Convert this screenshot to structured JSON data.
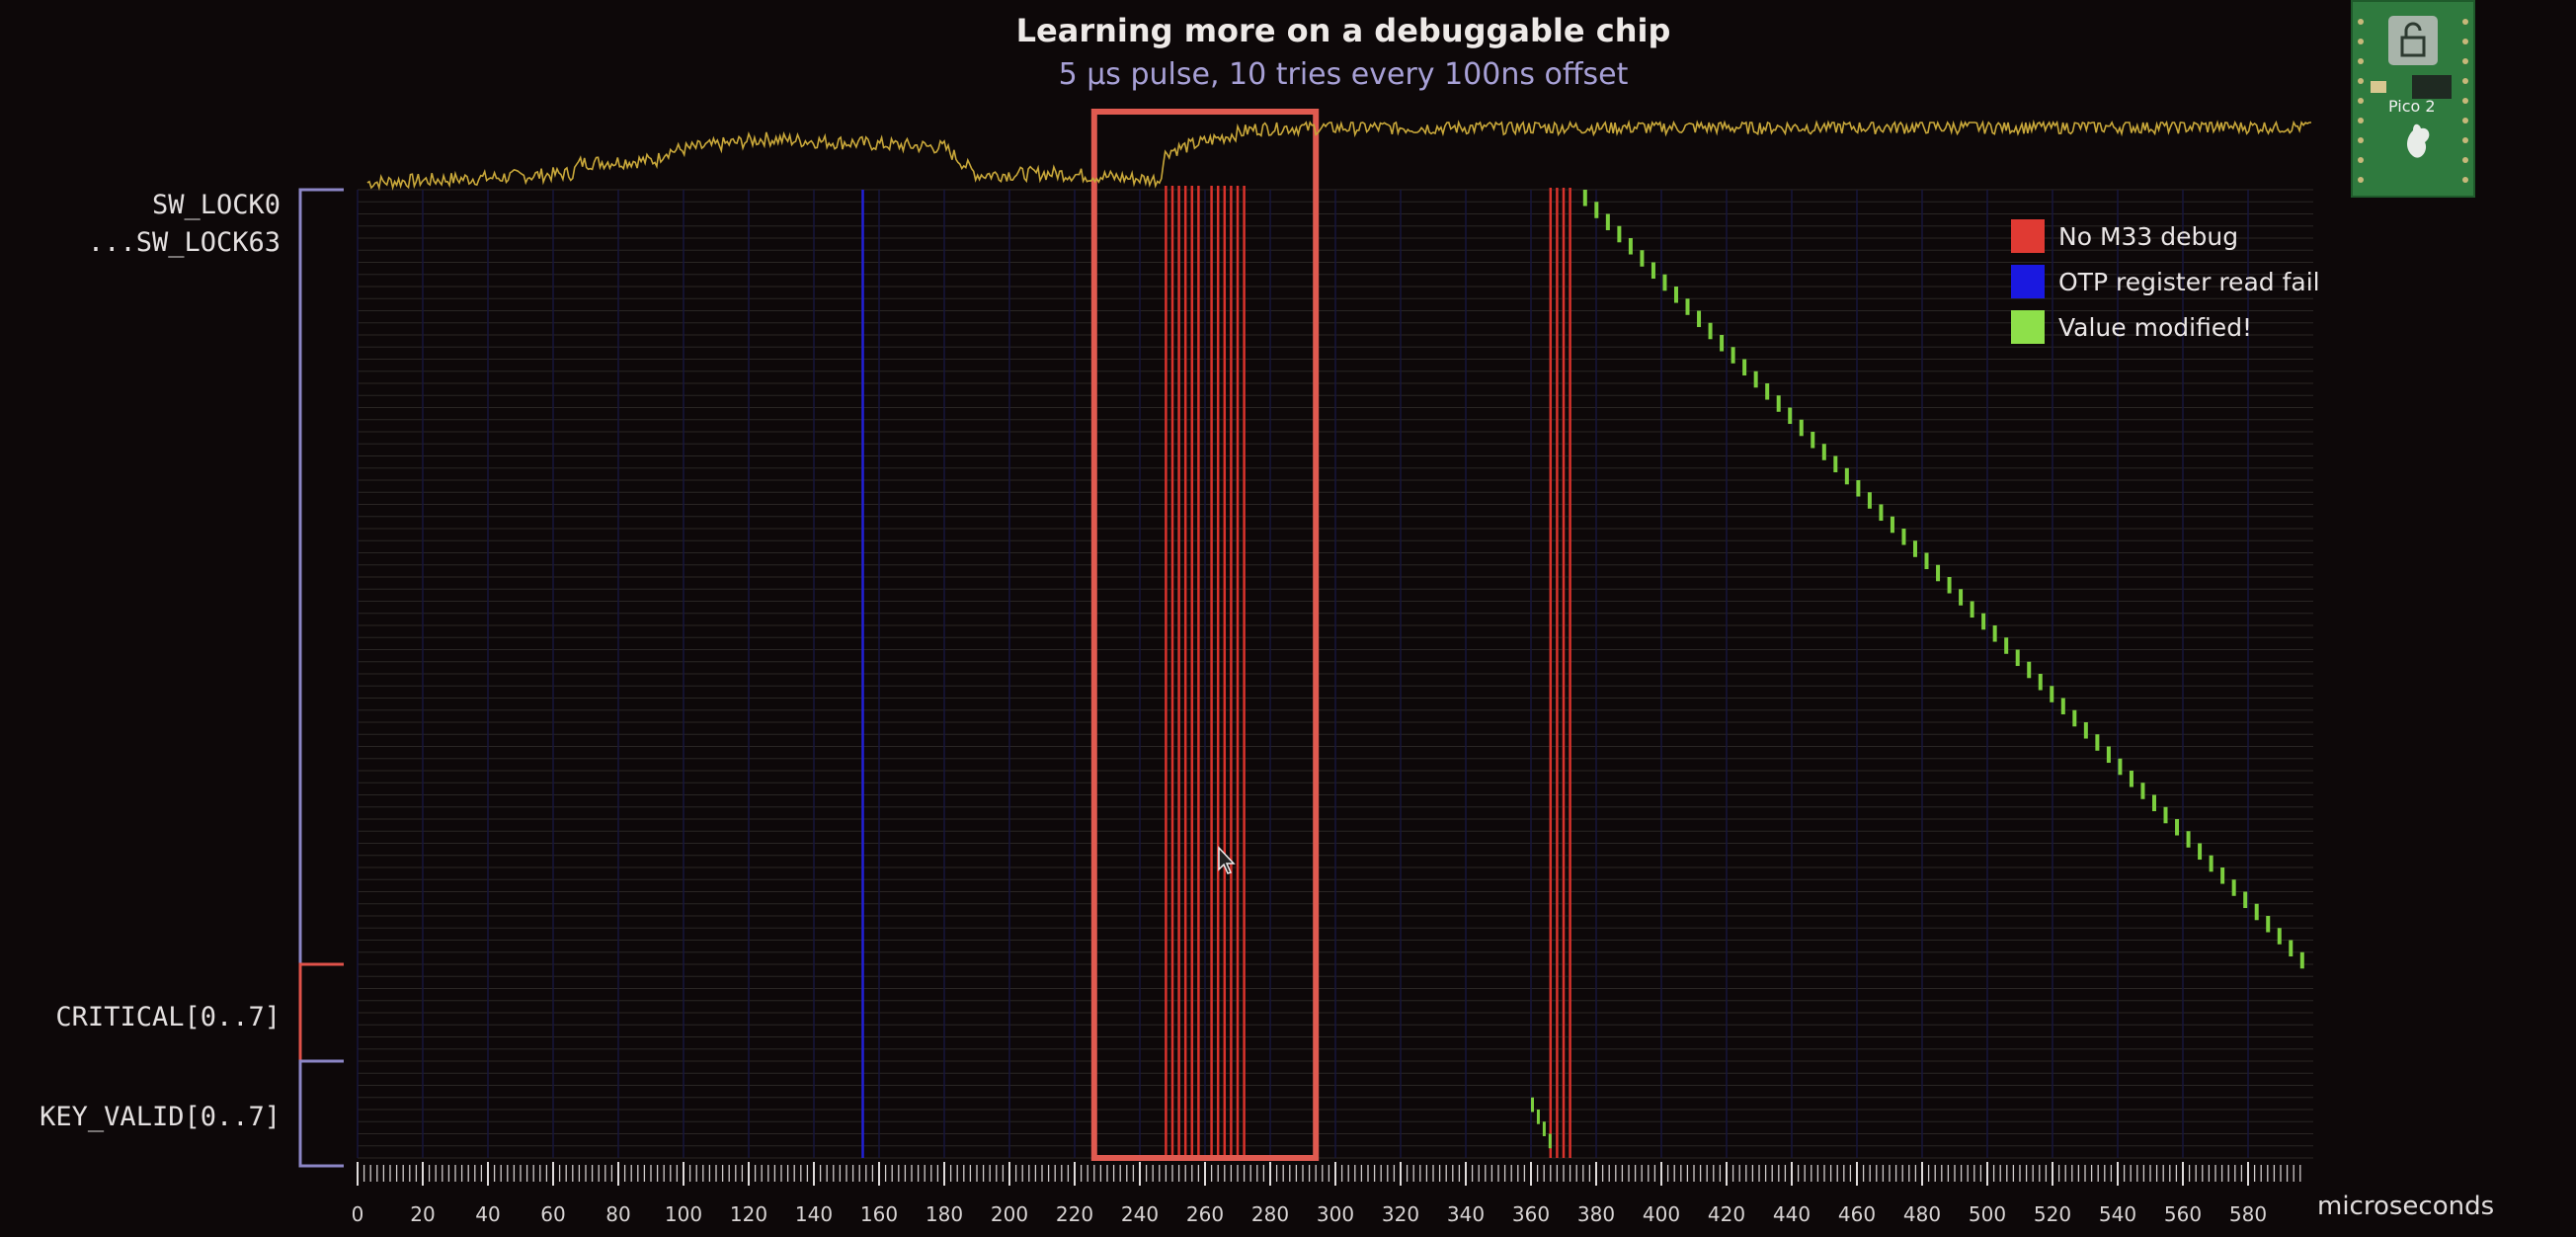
{
  "title": "Learning more on a debuggable chip",
  "subtitle": "5 μs pulse, 10 tries every 100ns offset",
  "register_labels": {
    "sw_lock_start": "SW_LOCK0",
    "sw_lock_end": "...SW_LOCK63",
    "critical": "CRITICAL[0..7]",
    "key_valid": "KEY_VALID[0..7]"
  },
  "legend": [
    {
      "label": "No M33 debug",
      "color": "#e03a33"
    },
    {
      "label": "OTP register read fail",
      "color": "#1a18e0"
    },
    {
      "label": "Value modified!",
      "color": "#8ee04a"
    }
  ],
  "x_unit_label": "microseconds",
  "board": {
    "logo_text": "Pico 2"
  },
  "colors": {
    "power_trace": "#c9a83a",
    "highlight_box": "#e05a50",
    "grid_row": "#2a2624",
    "sw_lock_bracket": "#8c86c6",
    "critical_bracket": "#e0524a",
    "key_valid_bracket": "#8c86c6"
  },
  "chart_data": {
    "type": "heatmap",
    "x_axis": {
      "label": "microseconds",
      "range": [
        0,
        600
      ],
      "ticks": [
        0,
        20,
        40,
        60,
        80,
        100,
        120,
        140,
        160,
        180,
        200,
        220,
        240,
        260,
        280,
        300,
        320,
        340,
        360,
        380,
        400,
        420,
        440,
        460,
        480,
        500,
        520,
        540,
        560,
        580
      ]
    },
    "rows": {
      "groups": [
        {
          "name": "SW_LOCK0 ... SW_LOCK63",
          "count": 64
        },
        {
          "name": "CRITICAL[0..7]",
          "count": 8
        },
        {
          "name": "KEY_VALID[0..7]",
          "count": 8
        }
      ]
    },
    "events": {
      "no_m33_debug_us": [
        248,
        250,
        252,
        254,
        256,
        258,
        262,
        264,
        266,
        268,
        270,
        272,
        366,
        368,
        370,
        372
      ],
      "otp_read_fail_us": [
        155
      ],
      "value_modified_first_us": 376,
      "value_modified_last_us": 596
    },
    "highlight_range_us": [
      226,
      294
    ],
    "power_trace": {
      "description": "",
      "points": [
        [
          3,
          0.08
        ],
        [
          40,
          0.15
        ],
        [
          66,
          0.22
        ],
        [
          68,
          0.38
        ],
        [
          92,
          0.42
        ],
        [
          94,
          0.55
        ],
        [
          125,
          0.75
        ],
        [
          180,
          0.62
        ],
        [
          190,
          0.2
        ],
        [
          214,
          0.22
        ],
        [
          232,
          0.16
        ],
        [
          246,
          0.12
        ],
        [
          248,
          0.55
        ],
        [
          275,
          0.9
        ],
        [
          282,
          0.92
        ],
        [
          600,
          0.94
        ]
      ]
    }
  }
}
